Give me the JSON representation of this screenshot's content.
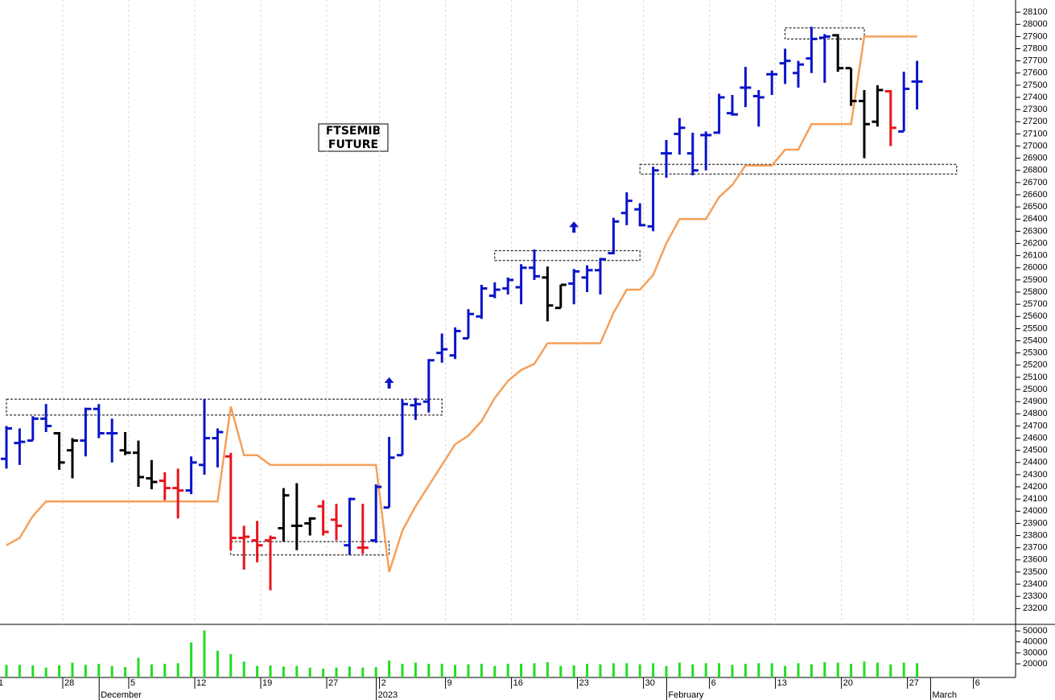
{
  "chart_data": {
    "type": "ohlc",
    "title": "FTSEMIB",
    "subtitle": "FUTURE",
    "categories": [
      "1",
      null,
      null,
      null,
      null,
      "28",
      null,
      null,
      null,
      null,
      "5",
      null,
      null,
      null,
      null,
      "12",
      null,
      null,
      null,
      null,
      "19",
      null,
      null,
      null,
      null,
      "27",
      null,
      null,
      null,
      "2",
      null,
      null,
      null,
      null,
      "9",
      null,
      null,
      null,
      null,
      "16",
      null,
      null,
      null,
      null,
      "23",
      null,
      null,
      null,
      null,
      "30",
      null,
      null,
      null,
      null,
      "6",
      null,
      null,
      null,
      null,
      "13",
      null,
      null,
      null,
      null,
      "20",
      null,
      null,
      null,
      null,
      "27",
      null,
      null,
      null,
      null,
      "6",
      null,
      null
    ],
    "months": [
      null,
      null,
      null,
      null,
      null,
      null,
      null,
      null,
      "December",
      null,
      null,
      null,
      null,
      null,
      null,
      null,
      null,
      null,
      null,
      null,
      null,
      null,
      null,
      null,
      null,
      null,
      null,
      null,
      null,
      "2023",
      null,
      null,
      null,
      null,
      null,
      null,
      null,
      null,
      null,
      null,
      null,
      null,
      null,
      null,
      null,
      null,
      null,
      null,
      null,
      null,
      null,
      "February",
      null,
      null,
      null,
      null,
      null,
      null,
      null,
      null,
      null,
      null,
      null,
      null,
      null,
      null,
      null,
      null,
      null,
      null,
      null,
      "March",
      null,
      null,
      null,
      null,
      null
    ],
    "open": [
      24430,
      24560,
      24580,
      24760,
      24640,
      24500,
      24580,
      24840,
      24640,
      24500,
      24480,
      24270,
      24250,
      24190,
      24170,
      24380,
      24600,
      24450,
      23780,
      23760,
      23760,
      23860,
      23880,
      23900,
      24040,
      23930,
      23720,
      23700,
      23760,
      24030,
      24460,
      24870,
      24900,
      25300,
      25280,
      25420,
      25600,
      25770,
      25830,
      25840,
      26000,
      25920,
      25670,
      25870,
      25920,
      25980,
      26120,
      26450,
      26480,
      26340,
      26940,
      27100,
      26940,
      27090,
      27110,
      27270,
      27480,
      27410,
      27590,
      27680,
      27600,
      27720,
      27890,
      27910,
      27640,
      27370,
      27200,
      27450,
      27120,
      27530,
      null,
      null,
      null,
      null,
      null,
      null,
      null
    ],
    "high": [
      24700,
      24680,
      24780,
      24880,
      24650,
      24600,
      24850,
      24880,
      24760,
      24650,
      24580,
      24420,
      24320,
      24350,
      24450,
      24920,
      24680,
      24480,
      23880,
      23920,
      23800,
      24190,
      24230,
      23950,
      24090,
      24060,
      24110,
      24060,
      24220,
      24610,
      24920,
      24930,
      25250,
      25460,
      25510,
      25660,
      25860,
      25880,
      25920,
      26030,
      26150,
      26010,
      25860,
      25990,
      26020,
      26080,
      26410,
      26620,
      26530,
      26830,
      27050,
      27230,
      27110,
      27120,
      27430,
      27420,
      27650,
      27460,
      27620,
      27800,
      27700,
      27980,
      27920,
      27920,
      27640,
      27460,
      27500,
      27460,
      27610,
      27700,
      null,
      null,
      null,
      null,
      null,
      null,
      null
    ],
    "low": [
      24350,
      24380,
      24580,
      24650,
      24340,
      24270,
      24450,
      24600,
      24400,
      24460,
      24200,
      24180,
      24090,
      23940,
      24140,
      24300,
      24360,
      23680,
      23520,
      23580,
      23350,
      23750,
      23680,
      23800,
      23800,
      23760,
      23640,
      23650,
      23740,
      24030,
      24460,
      24750,
      24810,
      25220,
      25250,
      25420,
      25580,
      25750,
      25780,
      25700,
      25900,
      25560,
      25670,
      25700,
      25800,
      25780,
      26110,
      26350,
      26340,
      26300,
      26740,
      26930,
      26760,
      26800,
      27100,
      27250,
      27320,
      27160,
      27420,
      27510,
      27480,
      27600,
      27520,
      27610,
      27330,
      26900,
      27160,
      27000,
      27120,
      27300,
      null,
      null,
      null,
      null,
      null,
      null,
      null
    ],
    "close": [
      24680,
      24570,
      24760,
      24700,
      24400,
      24580,
      24840,
      24640,
      24640,
      24480,
      24280,
      24240,
      24190,
      24170,
      24400,
      24600,
      24650,
      23780,
      23790,
      23720,
      23780,
      24130,
      23880,
      23940,
      23830,
      23880,
      24100,
      23700,
      24200,
      24440,
      24880,
      24880,
      25240,
      25330,
      25480,
      25620,
      25830,
      25820,
      25900,
      26000,
      25930,
      25690,
      25860,
      25970,
      25980,
      26070,
      26380,
      26550,
      26350,
      26800,
      26940,
      27150,
      26800,
      27090,
      27400,
      27260,
      27480,
      27400,
      27590,
      27700,
      27670,
      27880,
      27900,
      27640,
      27370,
      27180,
      27460,
      27150,
      27470,
      27530,
      null,
      null,
      null,
      null,
      null,
      null,
      null
    ],
    "colors": [
      "#0a14c8",
      "#0a14c8",
      "#0a14c8",
      "#0a14c8",
      "#000000",
      "#000000",
      "#0a14c8",
      "#0a14c8",
      "#0a14c8",
      "#000000",
      "#000000",
      "#000000",
      "#e8141e",
      "#e8141e",
      "#0a14c8",
      "#0a14c8",
      "#0a14c8",
      "#e8141e",
      "#e8141e",
      "#e8141e",
      "#e8141e",
      "#000000",
      "#000000",
      "#000000",
      "#e8141e",
      "#e8141e",
      "#0a14c8",
      "#e8141e",
      "#0a14c8",
      "#0a14c8",
      "#0a14c8",
      "#0a14c8",
      "#0a14c8",
      "#0a14c8",
      "#0a14c8",
      "#0a14c8",
      "#0a14c8",
      "#0a14c8",
      "#0a14c8",
      "#0a14c8",
      "#0a14c8",
      "#000000",
      "#000000",
      "#0a14c8",
      "#0a14c8",
      "#0a14c8",
      "#0a14c8",
      "#0a14c8",
      "#0a14c8",
      "#0a14c8",
      "#0a14c8",
      "#0a14c8",
      "#0a14c8",
      "#0a14c8",
      "#0a14c8",
      "#0a14c8",
      "#0a14c8",
      "#0a14c8",
      "#0a14c8",
      "#0a14c8",
      "#0a14c8",
      "#0a14c8",
      "#0a14c8",
      "#000000",
      "#000000",
      "#000000",
      "#000000",
      "#e8141e",
      "#0a14c8",
      "#0a14c8",
      null,
      null,
      null,
      null,
      null,
      null,
      null
    ],
    "stop": [
      23720,
      23780,
      23960,
      24080,
      24080,
      24080,
      24080,
      24080,
      24080,
      24080,
      24080,
      24080,
      24080,
      24080,
      24080,
      24080,
      24080,
      24860,
      24460,
      24460,
      24380,
      24380,
      24380,
      24380,
      24380,
      24380,
      24380,
      24380,
      24380,
      23500,
      23840,
      24040,
      24210,
      24380,
      24550,
      24620,
      24740,
      24930,
      25070,
      25160,
      25210,
      25380,
      25380,
      25380,
      25380,
      25380,
      25630,
      25820,
      25820,
      25940,
      26200,
      26400,
      26400,
      26400,
      26580,
      26680,
      26840,
      26840,
      26840,
      26970,
      26970,
      27180,
      27180,
      27180,
      27180,
      27900,
      27900,
      27900,
      27900,
      27900,
      null,
      null,
      null,
      null,
      null,
      null,
      null
    ],
    "stop_color": "#f5a05a",
    "volume": [
      19000,
      19000,
      18500,
      16500,
      18500,
      21000,
      19000,
      20000,
      18000,
      17000,
      25500,
      19500,
      20000,
      20500,
      39500,
      50500,
      32000,
      29000,
      22000,
      18000,
      18500,
      17500,
      18000,
      16500,
      15500,
      16500,
      17500,
      16500,
      17000,
      23000,
      20000,
      21000,
      20000,
      20000,
      19000,
      19500,
      20000,
      18000,
      20000,
      20000,
      20500,
      21500,
      18000,
      18500,
      20000,
      19500,
      20500,
      20500,
      19500,
      20500,
      18000,
      21000,
      19500,
      20500,
      20500,
      19000,
      20000,
      20500,
      20500,
      18000,
      20500,
      19500,
      21500,
      21000,
      20000,
      22000,
      21000,
      19500,
      21000,
      20500,
      null,
      null,
      null,
      null,
      null,
      null,
      null
    ],
    "volume_color": "#22dd22",
    "zones": [
      {
        "start": 0,
        "end": 33,
        "low": 24790,
        "high": 24920
      },
      {
        "start": 17,
        "end": 29,
        "low": 23640,
        "high": 23750
      },
      {
        "start": 37,
        "end": 48,
        "low": 26060,
        "high": 26140
      },
      {
        "start": 59,
        "end": 65,
        "low": 27880,
        "high": 27970
      },
      {
        "start": 48,
        "end": 72,
        "low": 26770,
        "high": 26850
      }
    ],
    "signals": [
      {
        "index": 29,
        "value": 25100
      },
      {
        "index": 43,
        "value": 26380
      }
    ],
    "signal_color": "#0a14c8",
    "ylim": [
      23070,
      28200
    ],
    "yticks": [
      23200,
      23300,
      23400,
      23500,
      23600,
      23700,
      23800,
      23900,
      24000,
      24100,
      24200,
      24300,
      24400,
      24500,
      24600,
      24700,
      24800,
      24900,
      25000,
      25100,
      25200,
      25300,
      25400,
      25500,
      25600,
      25700,
      25800,
      25900,
      26000,
      26100,
      26200,
      26300,
      26400,
      26500,
      26600,
      26700,
      26800,
      26900,
      27000,
      27100,
      27200,
      27300,
      27400,
      27500,
      27600,
      27700,
      27800,
      27900,
      28000,
      28100
    ],
    "vlim": [
      7500,
      56000
    ],
    "vticks": [
      20000,
      30000,
      40000,
      50000
    ],
    "grid": true
  }
}
